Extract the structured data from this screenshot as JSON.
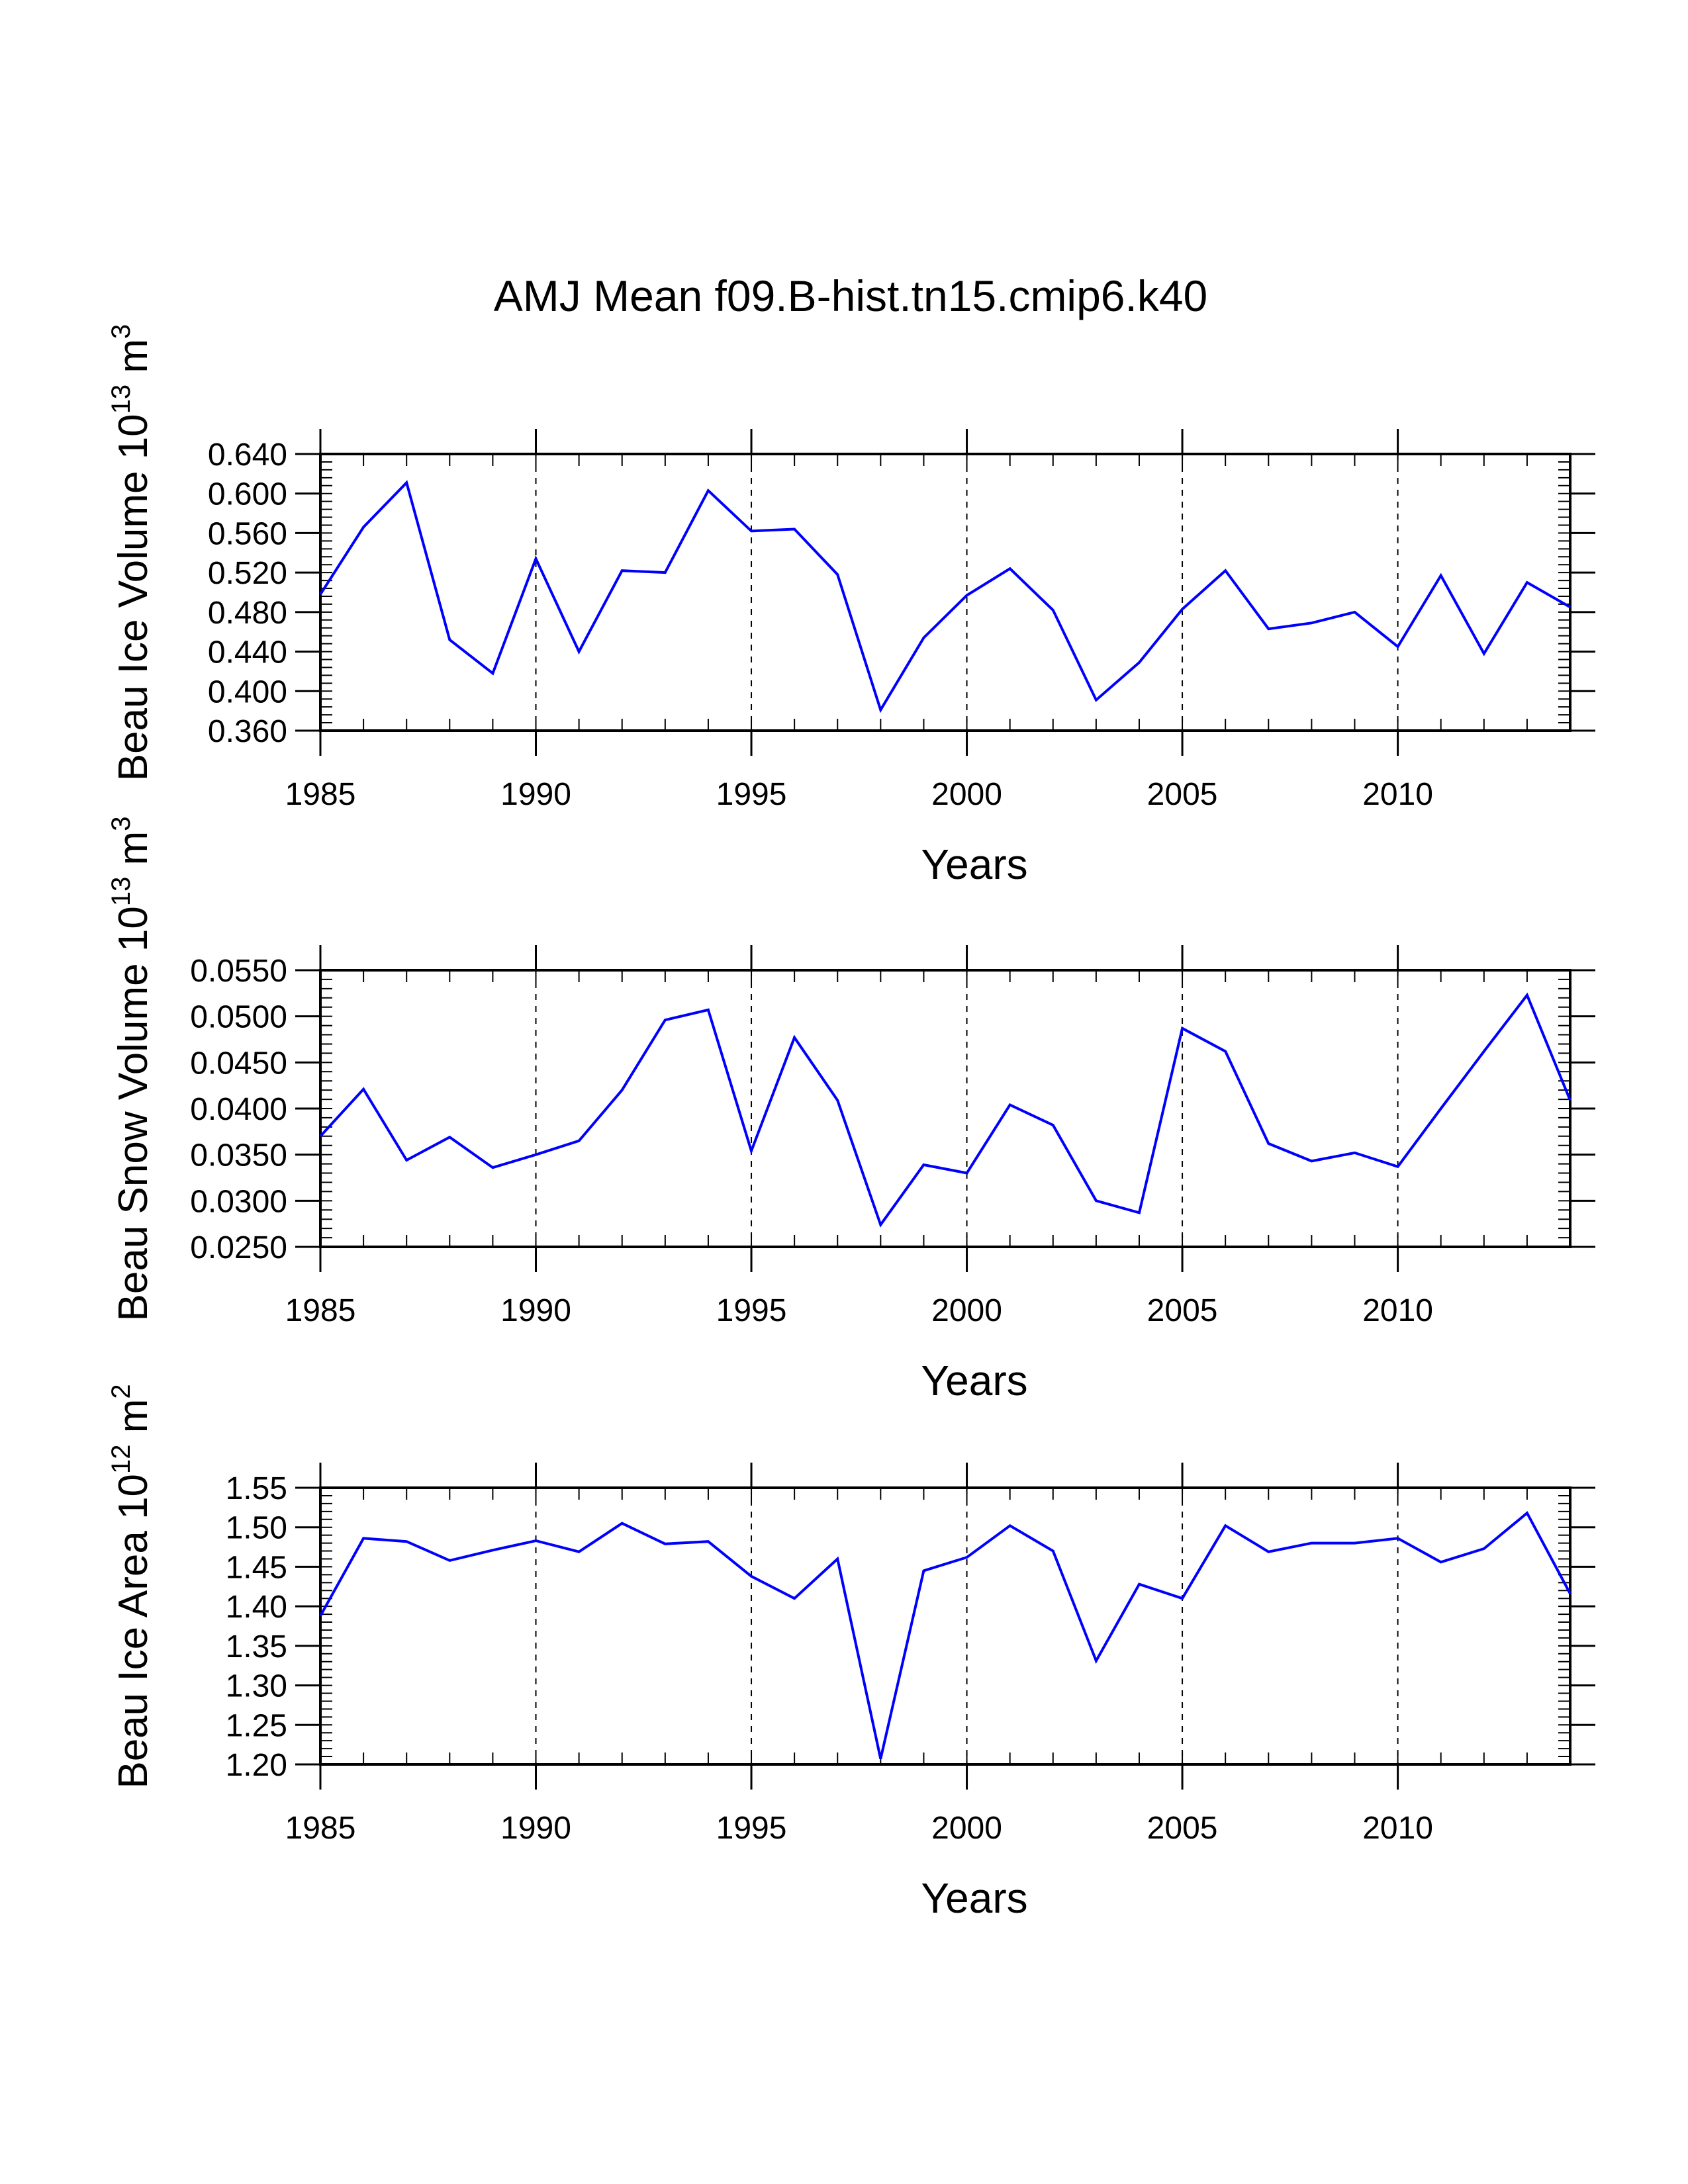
{
  "title": "AMJ Mean f09.B-hist.tn15.cmip6.k40",
  "colors": {
    "line": "#0000ff",
    "axis": "#000000",
    "background": "#ffffff"
  },
  "chart_data": [
    {
      "type": "line",
      "title": "",
      "xlabel": "Years",
      "ylabel": "Beau Ice Volume 10",
      "ylabel_exponent": "13",
      "ylabel_unit": " m",
      "ylabel_unit_exponent": "3",
      "xlim": [
        1985,
        2014
      ],
      "ylim": [
        0.36,
        0.64
      ],
      "x_ticks": [
        1985,
        1990,
        1995,
        2000,
        2005,
        2010
      ],
      "x_tick_labels": [
        "1985",
        "1990",
        "1995",
        "2000",
        "2005",
        "2010"
      ],
      "y_ticks": [
        0.36,
        0.4,
        0.44,
        0.48,
        0.52,
        0.56,
        0.6,
        0.64
      ],
      "y_tick_labels": [
        "0.360",
        "0.400",
        "0.440",
        "0.480",
        "0.520",
        "0.560",
        "0.600",
        "0.640"
      ],
      "y_minor_step": 0.008,
      "x_minor_step": 1,
      "grid_x_dashed": [
        1990,
        1995,
        2000,
        2005,
        2010
      ],
      "x": [
        1985,
        1986,
        1987,
        1988,
        1989,
        1990,
        1991,
        1992,
        1993,
        1994,
        1995,
        1996,
        1997,
        1998,
        1999,
        2000,
        2001,
        2002,
        2003,
        2004,
        2005,
        2006,
        2007,
        2008,
        2009,
        2010,
        2011,
        2012,
        2013,
        2014
      ],
      "series": [
        {
          "name": "Beau Ice Volume",
          "values": [
            0.498,
            0.566,
            0.611,
            0.452,
            0.418,
            0.534,
            0.44,
            0.522,
            0.52,
            0.603,
            0.562,
            0.564,
            0.518,
            0.381,
            0.454,
            0.497,
            0.524,
            0.482,
            0.391,
            0.429,
            0.483,
            0.522,
            0.463,
            0.469,
            0.48,
            0.445,
            0.517,
            0.438,
            0.51,
            0.485
          ]
        }
      ]
    },
    {
      "type": "line",
      "title": "",
      "xlabel": "Years",
      "ylabel": "Beau Snow Volume 10",
      "ylabel_exponent": "13",
      "ylabel_unit": " m",
      "ylabel_unit_exponent": "3",
      "xlim": [
        1985,
        2014
      ],
      "ylim": [
        0.025,
        0.055
      ],
      "x_ticks": [
        1985,
        1990,
        1995,
        2000,
        2005,
        2010
      ],
      "x_tick_labels": [
        "1985",
        "1990",
        "1995",
        "2000",
        "2005",
        "2010"
      ],
      "y_ticks": [
        0.025,
        0.03,
        0.035,
        0.04,
        0.045,
        0.05,
        0.055
      ],
      "y_tick_labels": [
        "0.0250",
        "0.0300",
        "0.0350",
        "0.0400",
        "0.0450",
        "0.0500",
        "0.0550"
      ],
      "y_minor_step": 0.001,
      "x_minor_step": 1,
      "grid_x_dashed": [
        1990,
        1995,
        2000,
        2005,
        2010
      ],
      "x": [
        1985,
        1986,
        1987,
        1988,
        1989,
        1990,
        1991,
        1992,
        1993,
        1994,
        1995,
        1996,
        1997,
        1998,
        1999,
        2000,
        2001,
        2002,
        2003,
        2004,
        2005,
        2006,
        2007,
        2008,
        2009,
        2010,
        2011,
        2012,
        2013,
        2014
      ],
      "series": [
        {
          "name": "Beau Snow Volume",
          "values": [
            0.037,
            0.0421,
            0.0344,
            0.0369,
            0.0336,
            0.035,
            0.0365,
            0.042,
            0.0496,
            0.0507,
            0.0354,
            0.0477,
            0.0409,
            0.0274,
            0.0339,
            0.033,
            0.0404,
            0.0382,
            0.03,
            0.0287,
            0.0487,
            0.0462,
            0.0362,
            0.0343,
            0.0352,
            0.0337,
            0.04,
            0.0462,
            0.0523,
            0.0409
          ]
        }
      ]
    },
    {
      "type": "line",
      "title": "",
      "xlabel": "Years",
      "ylabel": "Beau Ice Area 10",
      "ylabel_exponent": "12",
      "ylabel_unit": " m",
      "ylabel_unit_exponent": "2",
      "xlim": [
        1985,
        2014
      ],
      "ylim": [
        1.2,
        1.55
      ],
      "x_ticks": [
        1985,
        1990,
        1995,
        2000,
        2005,
        2010
      ],
      "x_tick_labels": [
        "1985",
        "1990",
        "1995",
        "2000",
        "2005",
        "2010"
      ],
      "y_ticks": [
        1.2,
        1.25,
        1.3,
        1.35,
        1.4,
        1.45,
        1.5,
        1.55
      ],
      "y_tick_labels": [
        "1.20",
        "1.25",
        "1.30",
        "1.35",
        "1.40",
        "1.45",
        "1.50",
        "1.55"
      ],
      "y_minor_step": 0.01,
      "x_minor_step": 1,
      "grid_x_dashed": [
        1990,
        1995,
        2000,
        2005,
        2010
      ],
      "x": [
        1985,
        1986,
        1987,
        1988,
        1989,
        1990,
        1991,
        1992,
        1993,
        1994,
        1995,
        1996,
        1997,
        1998,
        1999,
        2000,
        2001,
        2002,
        2003,
        2004,
        2005,
        2006,
        2007,
        2008,
        2009,
        2010,
        2011,
        2012,
        2013,
        2014
      ],
      "series": [
        {
          "name": "Beau Ice Area",
          "values": [
            1.388,
            1.486,
            1.482,
            1.458,
            1.471,
            1.483,
            1.469,
            1.505,
            1.479,
            1.482,
            1.438,
            1.41,
            1.46,
            1.207,
            1.445,
            1.462,
            1.502,
            1.47,
            1.331,
            1.428,
            1.41,
            1.502,
            1.469,
            1.48,
            1.48,
            1.486,
            1.456,
            1.473,
            1.518,
            1.416
          ]
        }
      ]
    }
  ]
}
